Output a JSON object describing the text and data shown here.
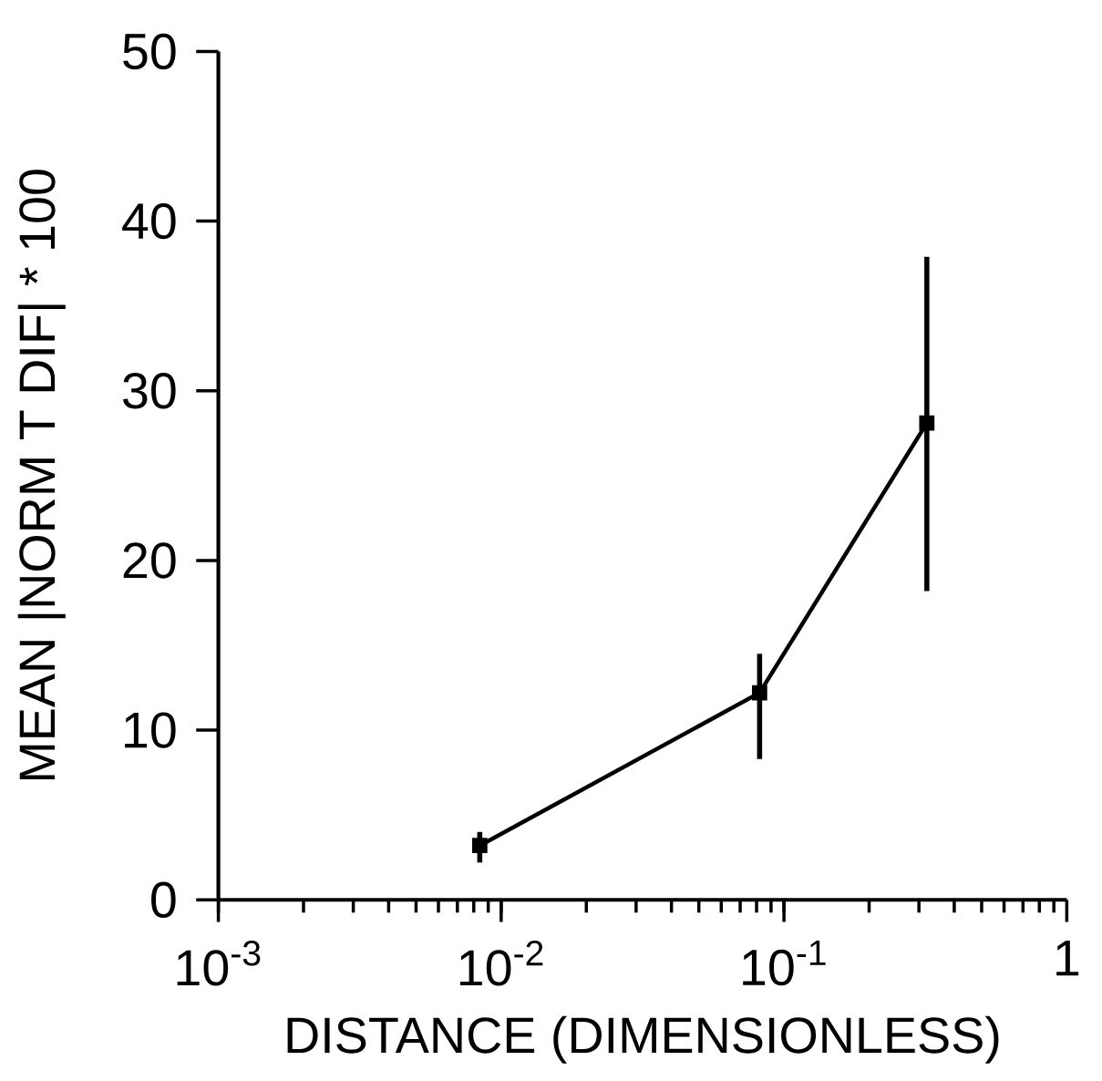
{
  "chart_data": {
    "type": "line",
    "xlabel": "DISTANCE  (DIMENSIONLESS)",
    "ylabel": "MEAN  |NORM T DIF|  * 100",
    "log": "x",
    "xlim": [
      0.001,
      1
    ],
    "ylim": [
      0,
      50
    ],
    "xticks": [
      {
        "value": 0.001,
        "label": "10$^{-3}$"
      },
      {
        "value": 0.01,
        "label": "10$^{-2}$"
      },
      {
        "value": 0.1,
        "label": "10$^{-1}$"
      },
      1
    ],
    "yticks": [
      0,
      10,
      20,
      30,
      40,
      50
    ],
    "x": [
      0.0084,
      0.082,
      0.32
    ],
    "series": [
      {
        "color": "#000000",
        "values": [
          3.2,
          12.2,
          28.1
        ],
        "errors": [
          [
            2.2,
            4.0
          ],
          [
            8.3,
            14.5
          ],
          [
            18.2,
            37.9
          ]
        ]
      }
    ],
    "marker": "square",
    "line_style": "solid",
    "grid": false
  }
}
